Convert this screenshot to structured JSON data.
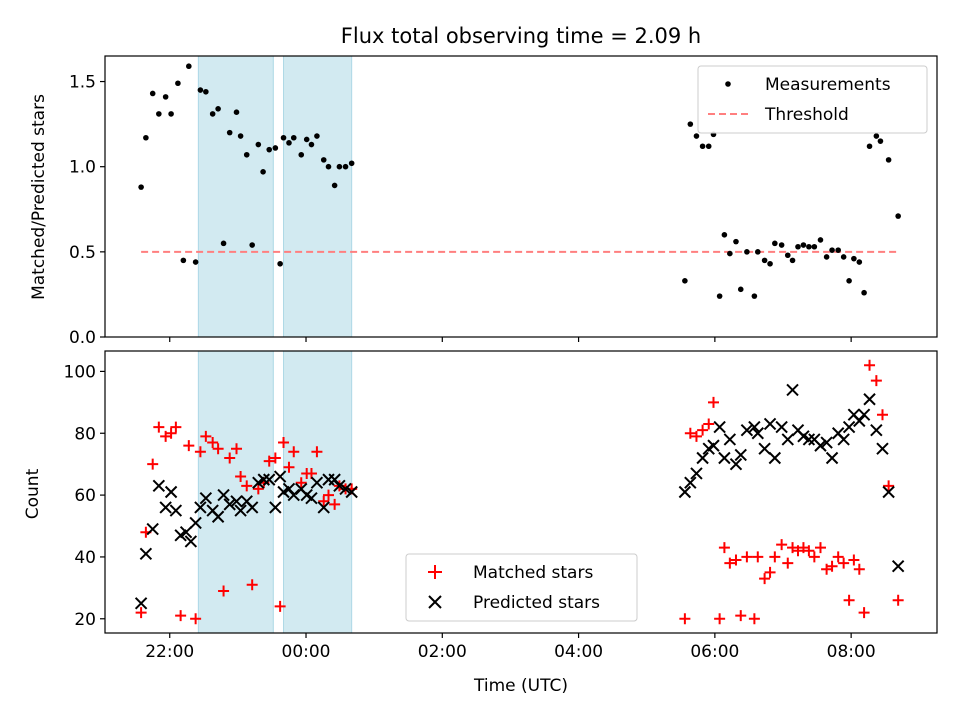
{
  "figure": {
    "title": "Flux total observing time = 2.09 h",
    "xlabel": "Time (UTC)",
    "x_tick_labels": [
      "22:00",
      "00:00",
      "02:00",
      "04:00",
      "06:00",
      "08:00"
    ]
  },
  "chart_data": [
    {
      "type": "scatter",
      "ylabel": "Matched/Predicted stars",
      "xlim": [
        -2.95,
        9.26
      ],
      "ylim": [
        0,
        1.65
      ],
      "y_ticks": [
        0.0,
        0.5,
        1.0,
        1.5
      ],
      "y_tick_labels": [
        "0.0",
        "0.5",
        "1.0",
        "1.5"
      ],
      "legend": {
        "placement": "upper right",
        "entries": [
          "Measurements",
          "Threshold"
        ]
      },
      "colors": {
        "measurements": "#000000",
        "threshold": "#ff7f7f",
        "span": "#add8e6"
      },
      "shaded_spans": [
        [
          -1.58,
          -0.48
        ],
        [
          -0.33,
          0.67
        ]
      ],
      "threshold": {
        "name": "Threshold",
        "y": 0.5,
        "x_range": [
          -2.42,
          8.71
        ]
      },
      "series": [
        {
          "name": "Measurements",
          "points": [
            [
              -2.42,
              0.88
            ],
            [
              -2.35,
              1.17
            ],
            [
              -2.25,
              1.43
            ],
            [
              -2.16,
              1.31
            ],
            [
              -2.06,
              1.41
            ],
            [
              -1.98,
              1.31
            ],
            [
              -1.88,
              1.49
            ],
            [
              -1.8,
              0.45
            ],
            [
              -1.72,
              1.59
            ],
            [
              -1.62,
              0.44
            ],
            [
              -1.55,
              1.45
            ],
            [
              -1.47,
              1.44
            ],
            [
              -1.37,
              1.31
            ],
            [
              -1.29,
              1.34
            ],
            [
              -1.21,
              0.55
            ],
            [
              -1.12,
              1.2
            ],
            [
              -1.02,
              1.32
            ],
            [
              -0.96,
              1.18
            ],
            [
              -0.87,
              1.07
            ],
            [
              -0.79,
              0.54
            ],
            [
              -0.7,
              1.13
            ],
            [
              -0.63,
              0.97
            ],
            [
              -0.54,
              1.1
            ],
            [
              -0.45,
              1.11
            ],
            [
              -0.38,
              0.43
            ],
            [
              -0.33,
              1.17
            ],
            [
              -0.25,
              1.14
            ],
            [
              -0.18,
              1.17
            ],
            [
              -0.07,
              1.07
            ],
            [
              0.01,
              1.16
            ],
            [
              0.08,
              1.13
            ],
            [
              0.16,
              1.18
            ],
            [
              0.26,
              1.04
            ],
            [
              0.33,
              1.0
            ],
            [
              0.42,
              0.89
            ],
            [
              0.49,
              1.0
            ],
            [
              0.58,
              1.0
            ],
            [
              0.67,
              1.02
            ],
            [
              5.56,
              0.33
            ],
            [
              5.64,
              1.25
            ],
            [
              5.73,
              1.18
            ],
            [
              5.82,
              1.12
            ],
            [
              5.91,
              1.12
            ],
            [
              5.98,
              1.19
            ],
            [
              6.07,
              0.24
            ],
            [
              6.14,
              0.6
            ],
            [
              6.22,
              0.49
            ],
            [
              6.31,
              0.56
            ],
            [
              6.38,
              0.28
            ],
            [
              6.47,
              0.5
            ],
            [
              6.58,
              0.24
            ],
            [
              6.63,
              0.5
            ],
            [
              6.73,
              0.45
            ],
            [
              6.81,
              0.43
            ],
            [
              6.88,
              0.55
            ],
            [
              6.98,
              0.54
            ],
            [
              7.07,
              0.48
            ],
            [
              7.14,
              0.45
            ],
            [
              7.22,
              0.53
            ],
            [
              7.3,
              0.54
            ],
            [
              7.38,
              0.53
            ],
            [
              7.46,
              0.53
            ],
            [
              7.55,
              0.57
            ],
            [
              7.64,
              0.47
            ],
            [
              7.72,
              0.51
            ],
            [
              7.81,
              0.51
            ],
            [
              7.89,
              0.47
            ],
            [
              7.97,
              0.33
            ],
            [
              8.04,
              0.46
            ],
            [
              8.12,
              0.44
            ],
            [
              8.19,
              0.26
            ],
            [
              8.27,
              1.12
            ],
            [
              8.37,
              1.18
            ],
            [
              8.43,
              1.15
            ],
            [
              8.55,
              1.04
            ],
            [
              8.69,
              0.71
            ]
          ]
        }
      ]
    },
    {
      "type": "scatter",
      "ylabel": "Count",
      "xlim": [
        -2.95,
        9.26
      ],
      "ylim": [
        15.4,
        106.6
      ],
      "y_ticks": [
        20,
        40,
        60,
        80,
        100
      ],
      "y_tick_labels": [
        "20",
        "40",
        "60",
        "80",
        "100"
      ],
      "legend": {
        "placement": "lower center",
        "entries": [
          "Matched stars",
          "Predicted stars"
        ]
      },
      "colors": {
        "matched": "#ff0000",
        "predicted": "#000000",
        "span": "#add8e6"
      },
      "shaded_spans": [
        [
          -1.58,
          -0.48
        ],
        [
          -0.33,
          0.67
        ]
      ],
      "series": [
        {
          "name": "Matched stars",
          "marker": "plus",
          "points": [
            [
              -2.42,
              22
            ],
            [
              -2.35,
              48
            ],
            [
              -2.25,
              70
            ],
            [
              -2.16,
              82
            ],
            [
              -2.06,
              79
            ],
            [
              -1.98,
              80
            ],
            [
              -1.91,
              82
            ],
            [
              -1.84,
              21
            ],
            [
              -1.72,
              76
            ],
            [
              -1.62,
              20
            ],
            [
              -1.55,
              74
            ],
            [
              -1.47,
              79
            ],
            [
              -1.37,
              77
            ],
            [
              -1.29,
              75
            ],
            [
              -1.21,
              29
            ],
            [
              -1.12,
              72
            ],
            [
              -1.02,
              75
            ],
            [
              -0.96,
              66
            ],
            [
              -0.87,
              63
            ],
            [
              -0.79,
              31
            ],
            [
              -0.7,
              62
            ],
            [
              -0.62,
              64
            ],
            [
              -0.54,
              71
            ],
            [
              -0.45,
              72
            ],
            [
              -0.38,
              24
            ],
            [
              -0.33,
              77
            ],
            [
              -0.25,
              69
            ],
            [
              -0.18,
              74
            ],
            [
              -0.07,
              64
            ],
            [
              0.01,
              67
            ],
            [
              0.08,
              67
            ],
            [
              0.16,
              74
            ],
            [
              0.26,
              58
            ],
            [
              0.33,
              60
            ],
            [
              0.42,
              57
            ],
            [
              0.49,
              63
            ],
            [
              0.58,
              62
            ],
            [
              0.67,
              62
            ],
            [
              5.56,
              20
            ],
            [
              5.64,
              80
            ],
            [
              5.73,
              79
            ],
            [
              5.82,
              81
            ],
            [
              5.91,
              83
            ],
            [
              5.98,
              90
            ],
            [
              6.07,
              20
            ],
            [
              6.14,
              43
            ],
            [
              6.22,
              38
            ],
            [
              6.31,
              39
            ],
            [
              6.38,
              21
            ],
            [
              6.47,
              40
            ],
            [
              6.58,
              20
            ],
            [
              6.63,
              40
            ],
            [
              6.73,
              33
            ],
            [
              6.81,
              35
            ],
            [
              6.88,
              40
            ],
            [
              6.98,
              44
            ],
            [
              7.07,
              38
            ],
            [
              7.14,
              43
            ],
            [
              7.22,
              42
            ],
            [
              7.3,
              43
            ],
            [
              7.38,
              42
            ],
            [
              7.46,
              40
            ],
            [
              7.55,
              43
            ],
            [
              7.64,
              36
            ],
            [
              7.72,
              37
            ],
            [
              7.81,
              40
            ],
            [
              7.89,
              38
            ],
            [
              7.97,
              26
            ],
            [
              8.04,
              39
            ],
            [
              8.12,
              36
            ],
            [
              8.19,
              22
            ],
            [
              8.27,
              102
            ],
            [
              8.37,
              97
            ],
            [
              8.46,
              86
            ],
            [
              8.55,
              63
            ],
            [
              8.69,
              26
            ]
          ]
        },
        {
          "name": "Predicted stars",
          "marker": "x",
          "points": [
            [
              -2.42,
              25
            ],
            [
              -2.35,
              41
            ],
            [
              -2.25,
              49
            ],
            [
              -2.16,
              63
            ],
            [
              -2.06,
              56
            ],
            [
              -1.98,
              61
            ],
            [
              -1.91,
              55
            ],
            [
              -1.84,
              47
            ],
            [
              -1.76,
              48
            ],
            [
              -1.69,
              45
            ],
            [
              -1.62,
              51
            ],
            [
              -1.55,
              56
            ],
            [
              -1.47,
              59
            ],
            [
              -1.37,
              55
            ],
            [
              -1.29,
              53
            ],
            [
              -1.21,
              60
            ],
            [
              -1.12,
              57
            ],
            [
              -1.02,
              58
            ],
            [
              -0.96,
              55
            ],
            [
              -0.87,
              58
            ],
            [
              -0.79,
              56
            ],
            [
              -0.7,
              64
            ],
            [
              -0.62,
              65
            ],
            [
              -0.54,
              65
            ],
            [
              -0.45,
              56
            ],
            [
              -0.38,
              66
            ],
            [
              -0.33,
              61
            ],
            [
              -0.25,
              62
            ],
            [
              -0.18,
              60
            ],
            [
              -0.07,
              62
            ],
            [
              0.01,
              60
            ],
            [
              0.08,
              59
            ],
            [
              0.16,
              64
            ],
            [
              0.26,
              56
            ],
            [
              0.33,
              65
            ],
            [
              0.42,
              65
            ],
            [
              0.49,
              63
            ],
            [
              0.58,
              62
            ],
            [
              0.67,
              61
            ],
            [
              5.56,
              61
            ],
            [
              5.64,
              64
            ],
            [
              5.73,
              67
            ],
            [
              5.82,
              72
            ],
            [
              5.91,
              75
            ],
            [
              5.98,
              76
            ],
            [
              6.07,
              82
            ],
            [
              6.14,
              72
            ],
            [
              6.22,
              78
            ],
            [
              6.31,
              70
            ],
            [
              6.38,
              73
            ],
            [
              6.47,
              81
            ],
            [
              6.58,
              82
            ],
            [
              6.63,
              80
            ],
            [
              6.73,
              75
            ],
            [
              6.81,
              83
            ],
            [
              6.88,
              72
            ],
            [
              6.98,
              82
            ],
            [
              7.07,
              78
            ],
            [
              7.14,
              94
            ],
            [
              7.22,
              81
            ],
            [
              7.3,
              79
            ],
            [
              7.38,
              78
            ],
            [
              7.46,
              78
            ],
            [
              7.55,
              76
            ],
            [
              7.64,
              77
            ],
            [
              7.72,
              72
            ],
            [
              7.81,
              80
            ],
            [
              7.89,
              78
            ],
            [
              7.97,
              82
            ],
            [
              8.04,
              86
            ],
            [
              8.12,
              84
            ],
            [
              8.19,
              86
            ],
            [
              8.27,
              91
            ],
            [
              8.37,
              81
            ],
            [
              8.46,
              75
            ],
            [
              8.55,
              61
            ],
            [
              8.69,
              37
            ]
          ]
        }
      ]
    }
  ]
}
